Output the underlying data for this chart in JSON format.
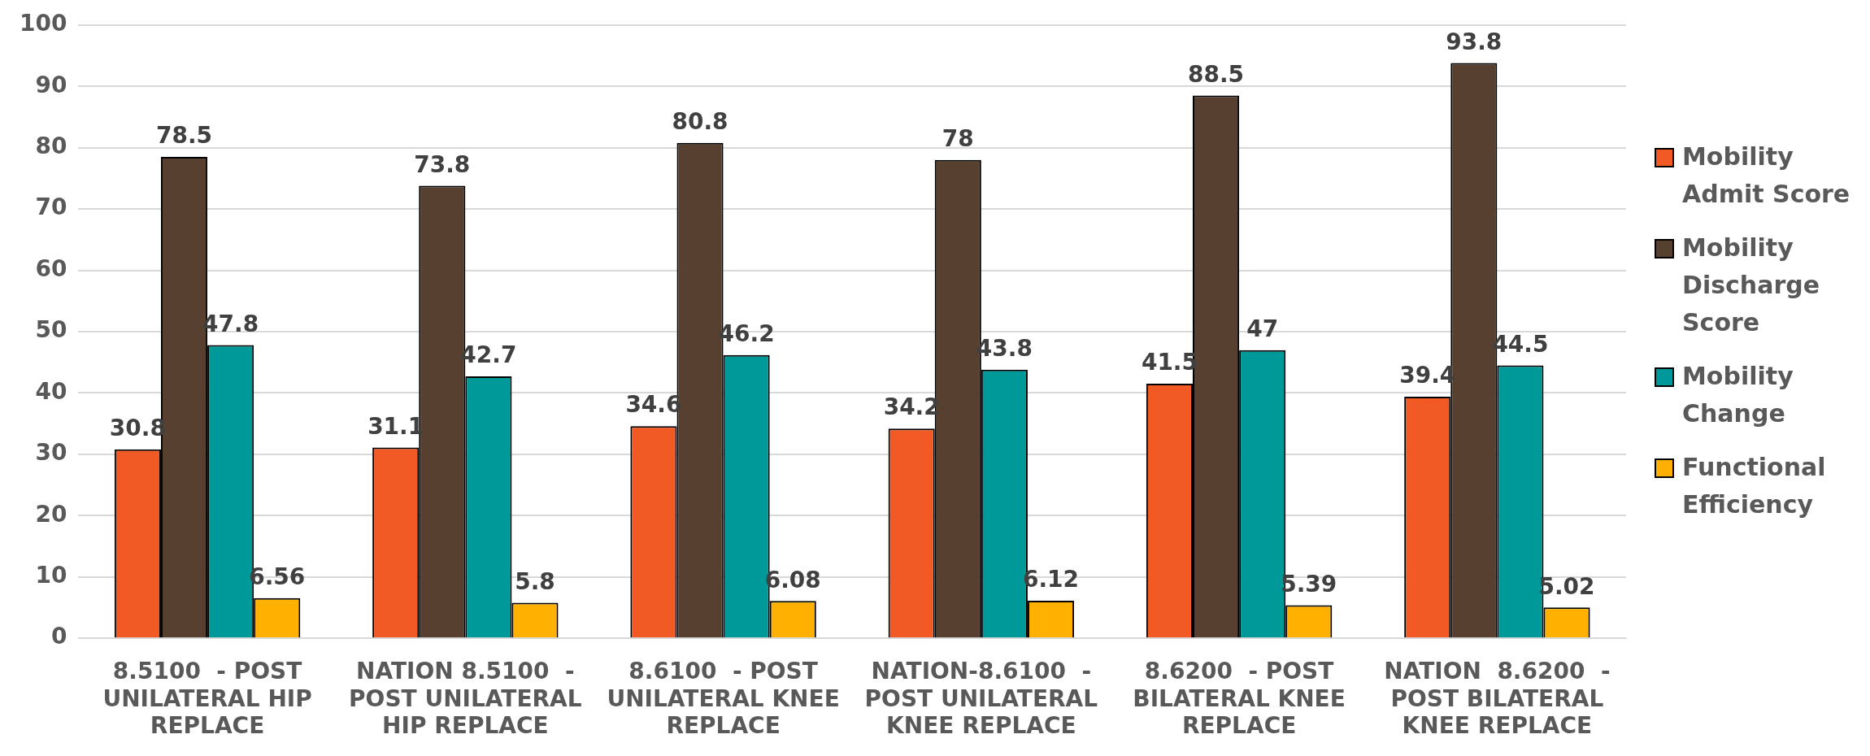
{
  "chart_data": {
    "type": "bar",
    "categories": [
      "8.5100  - POST UNILATERAL HIP REPLACE",
      "NATION 8.5100  - POST UNILATERAL HIP REPLACE",
      "8.6100  - POST UNILATERAL KNEE REPLACE",
      "NATION-8.6100  - POST UNILATERAL KNEE REPLACE",
      "8.6200  - POST BILATERAL KNEE REPLACE",
      "NATION  8.6200  - POST BILATERAL KNEE REPLACE"
    ],
    "series": [
      {
        "name": "Mobility Admit Score",
        "color": "#f15a24",
        "values": [
          30.8,
          31.1,
          34.6,
          34.2,
          41.5,
          39.4
        ]
      },
      {
        "name": "Mobility Discharge Score",
        "color": "#574030",
        "values": [
          78.5,
          73.8,
          80.8,
          78,
          88.5,
          93.8
        ]
      },
      {
        "name": "Mobility Change",
        "color": "#009999",
        "values": [
          47.8,
          42.7,
          46.2,
          43.8,
          47,
          44.5
        ]
      },
      {
        "name": "Functional Efficiency",
        "color": "#ffb000",
        "values": [
          6.56,
          5.8,
          6.08,
          6.12,
          5.39,
          5.02
        ]
      }
    ],
    "ylim": [
      0,
      100
    ],
    "yticks": [
      0,
      10,
      20,
      30,
      40,
      50,
      60,
      70,
      80,
      90,
      100
    ],
    "grid": "y",
    "legend": "right",
    "data_labels": true
  }
}
